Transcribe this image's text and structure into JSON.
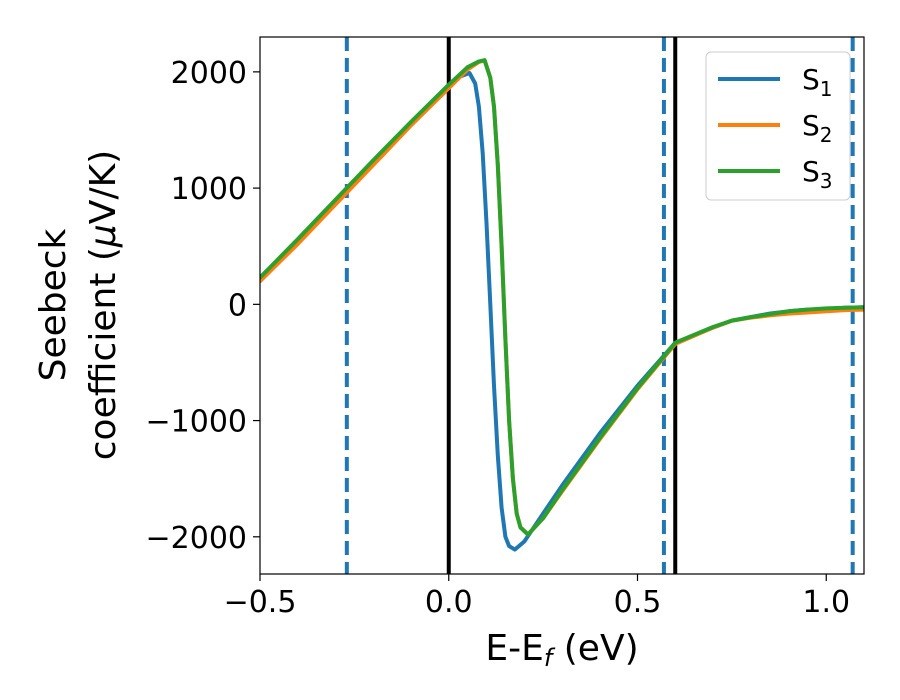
{
  "chart_data": {
    "type": "line",
    "xlabel": "E-E",
    "xlabel_sub": "f",
    "xlabel_unit": " (eV)",
    "ylabel_line1": "Seebeck",
    "ylabel_line2_pre": "coefficient  (",
    "ylabel_mu": "μ",
    "ylabel_line2_post": "V/K)",
    "xlim": [
      -0.5,
      1.1
    ],
    "ylim": [
      -2320,
      2300
    ],
    "xticks": [
      -0.5,
      0.0,
      0.5,
      1.0
    ],
    "xtick_labels": [
      "−0.5",
      "0.0",
      "0.5",
      "1.0"
    ],
    "yticks": [
      -2000,
      -1000,
      0,
      1000,
      2000
    ],
    "ytick_labels": [
      "−2000",
      "−1000",
      "0",
      "1000",
      "2000"
    ],
    "grid": false,
    "legend_position": "top-right",
    "vlines_solid": [
      0.0,
      0.6
    ],
    "vlines_dashed": [
      -0.27,
      0.57,
      1.07
    ],
    "vline_solid_color": "#000000",
    "vline_dashed_color": "#1f77b4",
    "series": [
      {
        "name": "S",
        "sub": "1",
        "color": "#1f77b4",
        "x": [
          -0.5,
          -0.4,
          -0.3,
          -0.2,
          -0.1,
          0.0,
          0.03,
          0.055,
          0.07,
          0.08,
          0.09,
          0.1,
          0.11,
          0.12,
          0.13,
          0.14,
          0.15,
          0.16,
          0.175,
          0.2,
          0.25,
          0.3,
          0.4,
          0.5,
          0.6,
          0.7,
          0.75,
          0.8,
          0.85,
          0.9,
          0.95,
          1.0,
          1.05,
          1.1
        ],
        "y": [
          200,
          530,
          880,
          1220,
          1560,
          1890,
          1960,
          1990,
          1900,
          1700,
          1300,
          700,
          0,
          -700,
          -1300,
          -1750,
          -2000,
          -2080,
          -2110,
          -2040,
          -1800,
          -1560,
          -1110,
          -700,
          -330,
          -200,
          -140,
          -110,
          -80,
          -60,
          -45,
          -40,
          -30,
          -25
        ]
      },
      {
        "name": "S",
        "sub": "2",
        "color": "#ff7f0e",
        "x": [
          -0.5,
          -0.4,
          -0.3,
          -0.2,
          -0.1,
          0.0,
          0.05,
          0.08,
          0.095,
          0.11,
          0.12,
          0.13,
          0.14,
          0.15,
          0.16,
          0.17,
          0.18,
          0.19,
          0.21,
          0.25,
          0.3,
          0.4,
          0.5,
          0.6,
          0.7,
          0.75,
          0.8,
          0.85,
          0.9,
          0.95,
          1.0,
          1.05,
          1.1
        ],
        "y": [
          200,
          520,
          860,
          1200,
          1540,
          1860,
          2020,
          2085,
          2100,
          1950,
          1700,
          1200,
          500,
          -300,
          -1000,
          -1500,
          -1800,
          -1920,
          -1980,
          -1840,
          -1610,
          -1160,
          -730,
          -340,
          -200,
          -140,
          -115,
          -95,
          -80,
          -70,
          -60,
          -50,
          -45
        ]
      },
      {
        "name": "S",
        "sub": "3",
        "color": "#2ca02c",
        "x": [
          -0.5,
          -0.4,
          -0.3,
          -0.2,
          -0.1,
          0.0,
          0.05,
          0.08,
          0.095,
          0.11,
          0.12,
          0.13,
          0.14,
          0.15,
          0.16,
          0.17,
          0.18,
          0.19,
          0.21,
          0.25,
          0.3,
          0.4,
          0.5,
          0.6,
          0.7,
          0.75,
          0.8,
          0.85,
          0.9,
          0.95,
          1.0,
          1.05,
          1.1
        ],
        "y": [
          230,
          560,
          900,
          1240,
          1570,
          1890,
          2040,
          2090,
          2100,
          1950,
          1700,
          1200,
          500,
          -300,
          -1000,
          -1500,
          -1800,
          -1920,
          -1980,
          -1840,
          -1600,
          -1150,
          -720,
          -330,
          -195,
          -140,
          -110,
          -85,
          -60,
          -45,
          -35,
          -30,
          -25
        ]
      }
    ]
  }
}
